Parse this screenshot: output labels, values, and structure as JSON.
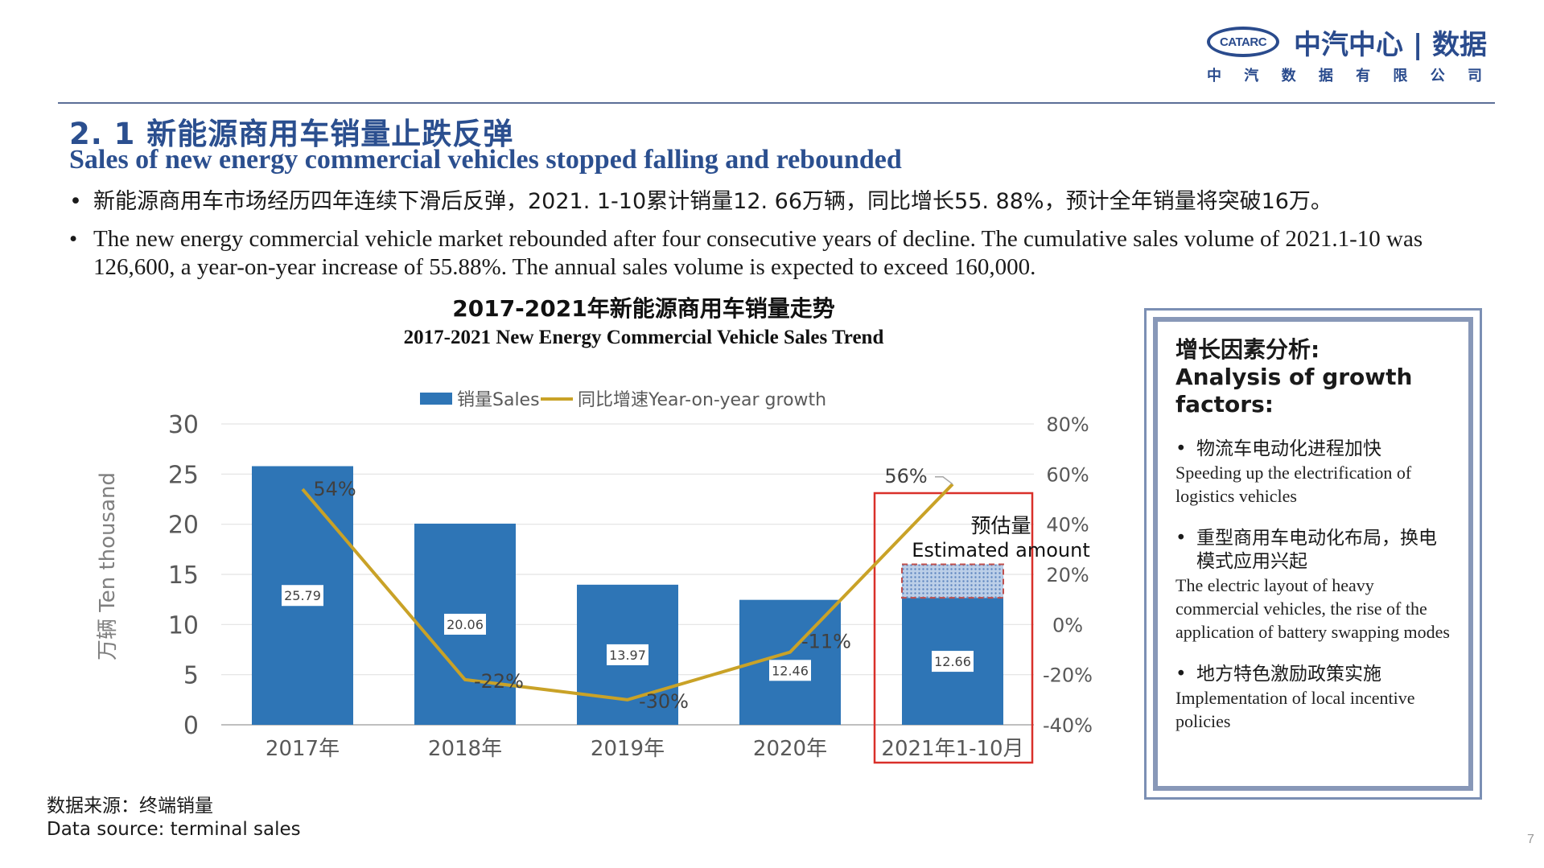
{
  "logo": {
    "mark": "CATARC",
    "name": "中汽中心 | 数据",
    "subtitle_chars": [
      "中",
      "汽",
      "数",
      "据",
      "有",
      "限",
      "公",
      "司"
    ]
  },
  "title": {
    "zh": "2. 1  新能源商用车销量止跌反弹",
    "en": "Sales of new energy commercial vehicles stopped falling and rebounded"
  },
  "bullets": [
    "新能源商用车市场经历四年连续下滑后反弹，2021. 1-10累计销量12. 66万辆，同比增长55. 88%，预计全年销量将突破16万。",
    "The new energy commercial vehicle market rebounded after four consecutive years of decline. The cumulative sales volume of 2021.1-10 was 126,600, a year-on-year increase of 55.88%. The annual sales volume is expected to exceed 160,000."
  ],
  "bullet_symbol": "•",
  "chart_data": {
    "type": "bar",
    "title": "2017-2021年新能源商用车销量走势",
    "subtitle": "2017-2021 New Energy Commercial Vehicle Sales Trend",
    "categories": [
      "2017年",
      "2018年",
      "2019年",
      "2020年",
      "2021年1-10月"
    ],
    "series": [
      {
        "name": "销量Sales",
        "type": "bar",
        "axis": "left",
        "values": [
          25.79,
          20.06,
          13.97,
          12.46,
          12.66
        ],
        "labels": [
          "25.79",
          "20.06",
          "13.97",
          "12.46",
          "12.66"
        ],
        "color": "#2e75b6"
      },
      {
        "name": "同比增速Year-on-year growth",
        "type": "line",
        "axis": "right",
        "values": [
          54,
          -22,
          -30,
          -11,
          56
        ],
        "labels": [
          "54%",
          "-22%",
          "-30%",
          "-11%",
          "56%"
        ],
        "color": "#c9a227"
      }
    ],
    "estimated": {
      "category_index": 4,
      "from": 12.66,
      "to": 16,
      "label_zh": "预估量",
      "label_en": "Estimated amount"
    },
    "ylabel": "万辆  Ten thousand",
    "ylim": [
      0,
      30
    ],
    "yticks": [
      "0",
      "5",
      "10",
      "15",
      "20",
      "25",
      "30"
    ],
    "y2lim": [
      -40,
      80
    ],
    "y2ticks": [
      "-40%",
      "-20%",
      "0%",
      "20%",
      "40%",
      "60%",
      "80%"
    ],
    "grid": true,
    "legend": "top-center"
  },
  "growth_box": {
    "title_zh": "增长因素分析:",
    "title_en": "Analysis of growth factors:",
    "factors": [
      {
        "zh": "物流车电动化进程加快",
        "en": "Speeding up the electrification of logistics vehicles"
      },
      {
        "zh": "重型商用车电动化布局，换电模式应用兴起",
        "en": "The electric layout of heavy commercial vehicles, the rise of the application of battery swapping modes"
      },
      {
        "zh": "地方特色激励政策实施",
        "en": "Implementation of local incentive policies"
      }
    ]
  },
  "source": {
    "zh": "数据来源：终端销量",
    "en": "Data source: terminal sales"
  },
  "page_number": "7"
}
